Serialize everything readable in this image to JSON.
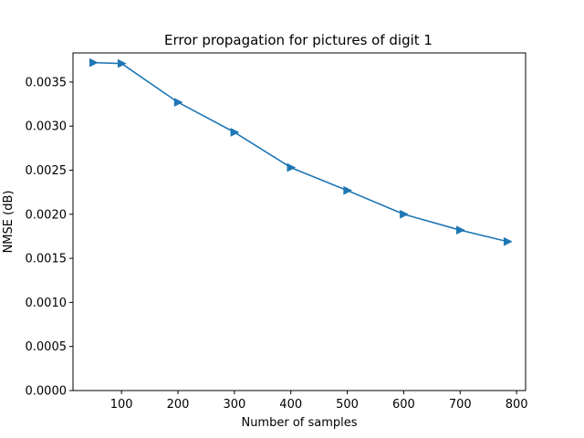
{
  "chart_data": {
    "type": "line",
    "title": "Error propagation for pictures of digit 1",
    "xlabel": "Number of samples",
    "ylabel": "NMSE (dB)",
    "xlim": [
      14,
      816
    ],
    "ylim": [
      0,
      0.00383
    ],
    "xticks": [
      100,
      200,
      300,
      400,
      500,
      600,
      700,
      800
    ],
    "xtick_labels": [
      "100",
      "200",
      "300",
      "400",
      "500",
      "600",
      "700",
      "800"
    ],
    "yticks": [
      0,
      0.0005,
      0.001,
      0.0015,
      0.002,
      0.0025,
      0.003,
      0.0035
    ],
    "ytick_labels": [
      "0.0000",
      "0.0005",
      "0.0010",
      "0.0015",
      "0.0020",
      "0.0025",
      "0.0030",
      "0.0035"
    ],
    "grid": false,
    "marker": "triangle-right",
    "series": [
      {
        "color": "#1f77b4",
        "x": [
          50,
          100,
          200,
          300,
          400,
          500,
          600,
          700,
          784
        ],
        "y": [
          0.00372,
          0.00371,
          0.00327,
          0.00293,
          0.00253,
          0.00227,
          0.002,
          0.00182,
          0.00169
        ]
      }
    ]
  }
}
